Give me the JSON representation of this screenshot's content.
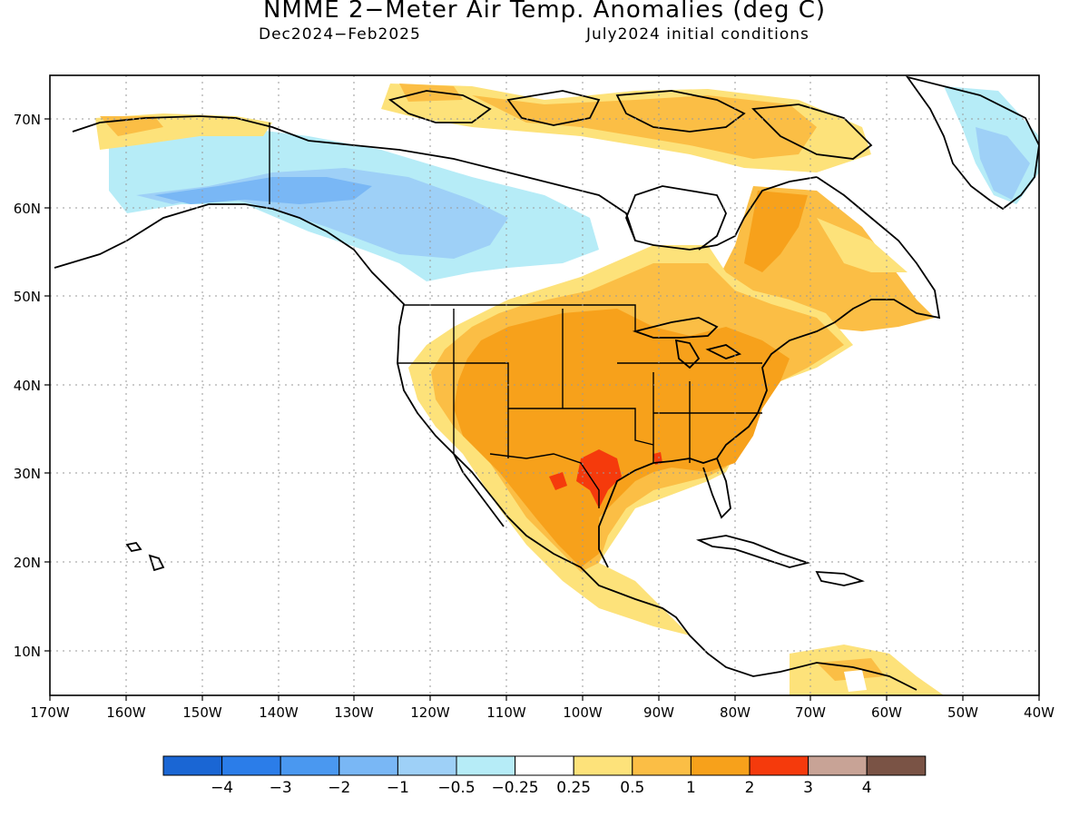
{
  "title": "NMME 2−Meter Air Temp. Anomalies (deg C)",
  "subtitle_left": "Dec2024−Feb2025",
  "subtitle_right": "July2024 initial conditions",
  "lat_labels": [
    "70N",
    "60N",
    "50N",
    "40N",
    "30N",
    "20N",
    "10N"
  ],
  "lon_labels": [
    "170W",
    "160W",
    "150W",
    "140W",
    "130W",
    "120W",
    "110W",
    "100W",
    "90W",
    "80W",
    "70W",
    "60W",
    "50W",
    "40W"
  ],
  "colorbar": {
    "colors": [
      "#1a66d4",
      "#2b7de9",
      "#4a98f0",
      "#79b7f5",
      "#9ed0f7",
      "#b6ecf7",
      "#ffffff",
      "#fde27a",
      "#fbbe45",
      "#f7a11b",
      "#f53a0c",
      "#c8a396",
      "#7a5345"
    ],
    "labels": [
      "−4",
      "−3",
      "−2",
      "−1",
      "−0.5",
      "−0.25",
      "0.25",
      "0.5",
      "1",
      "2",
      "3",
      "4"
    ]
  }
}
